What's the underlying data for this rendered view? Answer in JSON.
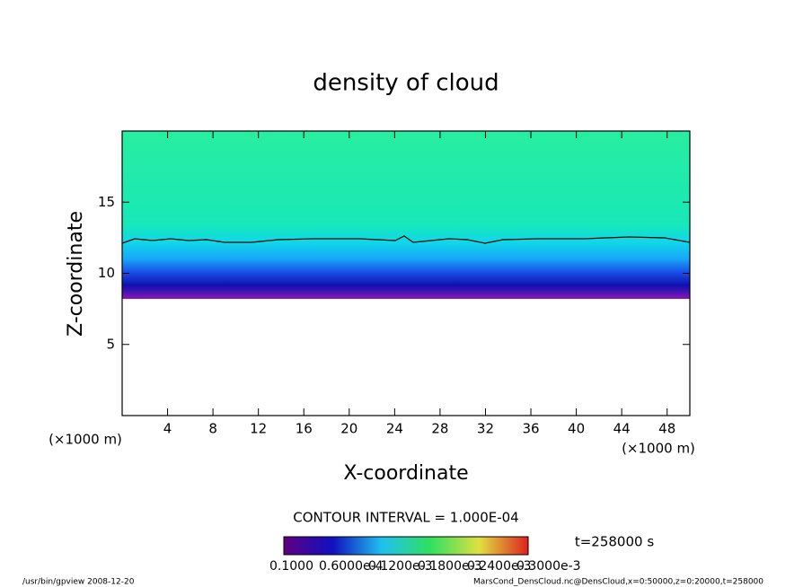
{
  "chart_data": {
    "type": "contour",
    "title": "density of cloud",
    "x_label": "X-coordinate",
    "y_label": "Z-coordinate",
    "x_unit": "(×1000 m)",
    "y_unit": "(×1000 m)",
    "xlim": [
      0,
      50
    ],
    "xticks": [
      4,
      8,
      12,
      16,
      20,
      24,
      28,
      32,
      36,
      40,
      44,
      48
    ],
    "ylim": [
      0,
      20
    ],
    "yticks": [
      5,
      10,
      15
    ],
    "contour_interval": "CONTOUR INTERVAL = 1.000E-04",
    "time": "t=258000 s",
    "colorbar_labels": [
      "0.1000",
      "0.6000e-4",
      "0.1200e-3",
      "0.1800e-3",
      "0.2400e-3",
      "0.3000e-3"
    ],
    "footer_left": "/usr/bin/gpview   2008-12-20",
    "footer_right": "MarsCond_DensCloud.nc@DensCloud,x=0:50000,z=0:20000,t=258000"
  }
}
